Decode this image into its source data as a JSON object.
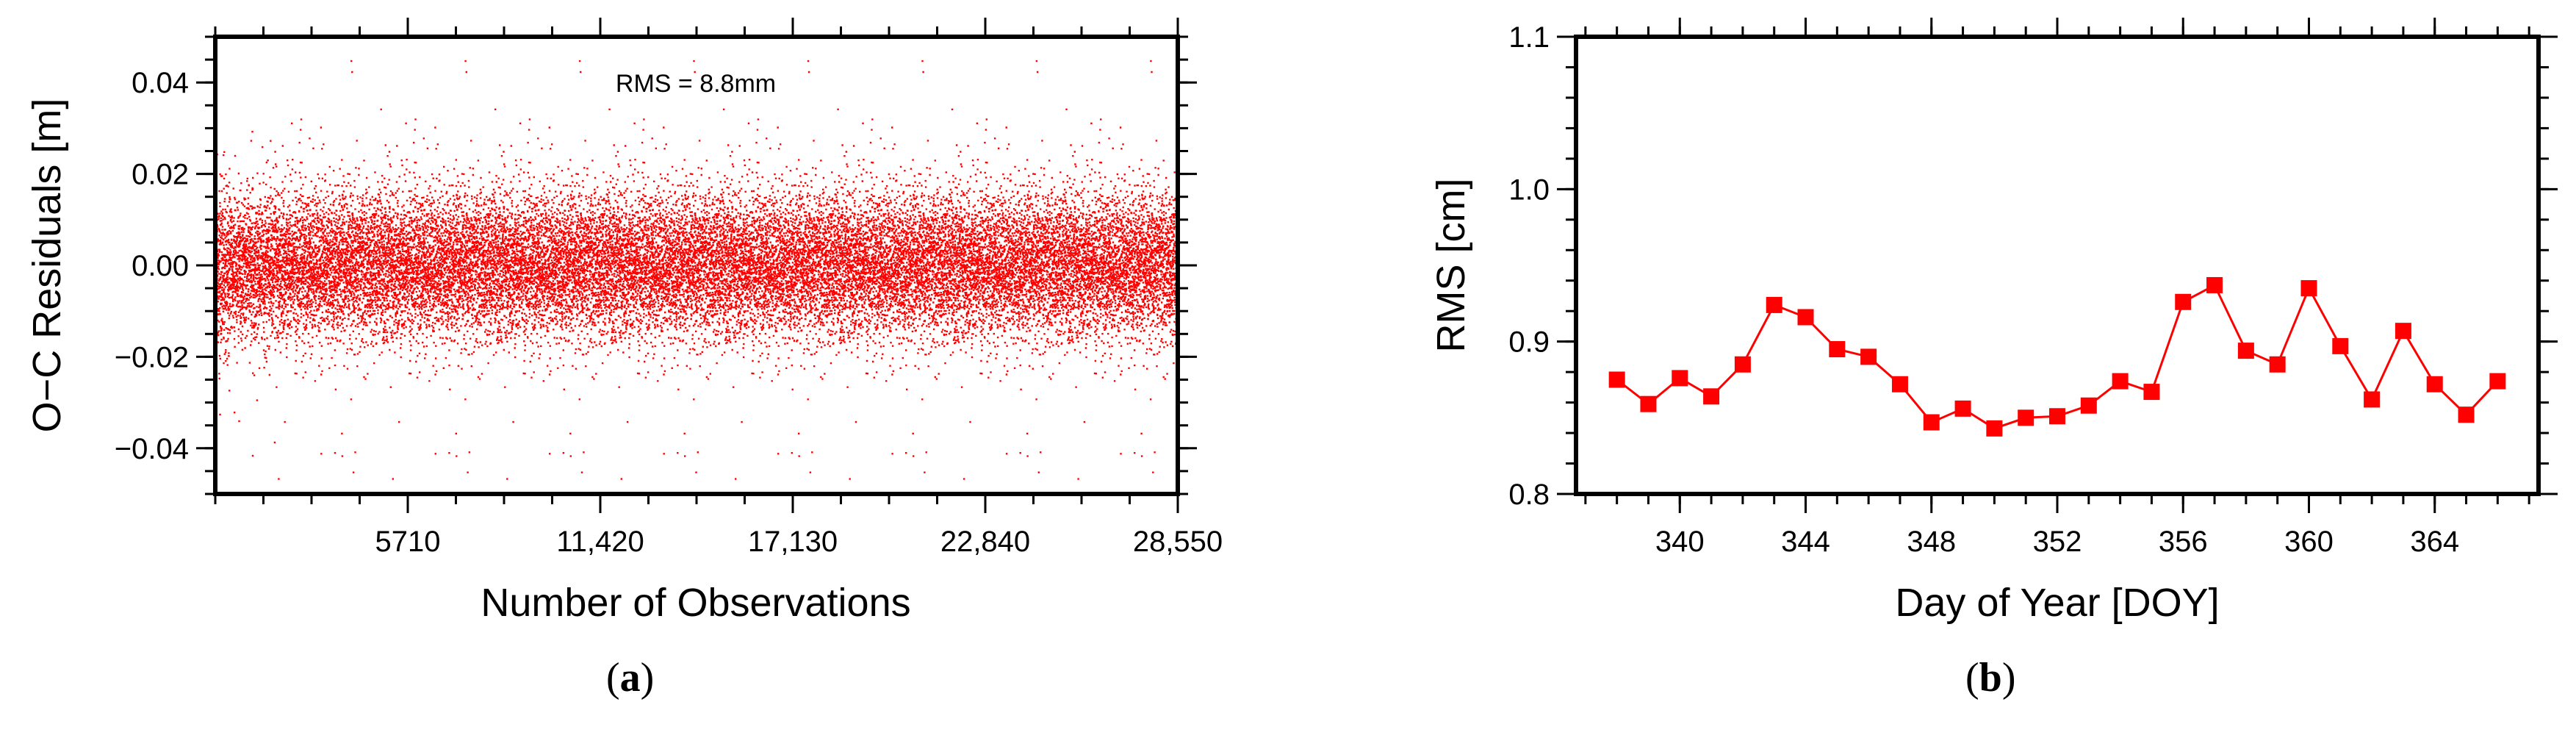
{
  "chart_data": [
    {
      "type": "scatter",
      "xlabel": "Number of Observations",
      "ylabel": "O−C Residuals [m]",
      "annotation": "RMS = 8.8mm",
      "caption_letter": "a",
      "xlim": [
        0,
        28550
      ],
      "ylim": [
        -0.05,
        0.05
      ],
      "x_ticks": [
        5710,
        11420,
        17130,
        22840,
        28550
      ],
      "x_tick_labels": [
        "5710",
        "11,420",
        "17,130",
        "22,840",
        "28,550"
      ],
      "y_ticks": [
        -0.04,
        -0.02,
        0.0,
        0.02,
        0.04
      ],
      "y_tick_labels": [
        "−0.04",
        "−0.02",
        "0.00",
        "0.02",
        "0.04"
      ],
      "n_points": 28550,
      "rms": 0.0088,
      "color": "#ff0000"
    },
    {
      "type": "line",
      "xlabel": "Day of Year [DOY]",
      "ylabel": "RMS [cm]",
      "caption_letter": "b",
      "xlim": [
        336.7,
        367.3
      ],
      "ylim": [
        0.8,
        1.1
      ],
      "x_ticks": [
        340,
        344,
        348,
        352,
        356,
        360,
        364
      ],
      "x_tick_labels": [
        "340",
        "344",
        "348",
        "352",
        "356",
        "360",
        "364"
      ],
      "y_ticks": [
        0.8,
        0.9,
        1.0,
        1.1
      ],
      "y_tick_labels": [
        "0.8",
        "0.9",
        "1.0",
        "1.1"
      ],
      "color": "#ff0000",
      "marker": "square",
      "x": [
        338,
        339,
        340,
        341,
        342,
        343,
        344,
        345,
        346,
        347,
        348,
        349,
        350,
        351,
        352,
        353,
        354,
        355,
        356,
        357,
        358,
        359,
        360,
        361,
        362,
        363,
        364,
        365,
        366
      ],
      "y": [
        0.875,
        0.859,
        0.876,
        0.864,
        0.885,
        0.924,
        0.916,
        0.895,
        0.89,
        0.872,
        0.847,
        0.856,
        0.843,
        0.85,
        0.851,
        0.858,
        0.874,
        0.867,
        0.926,
        0.937,
        0.894,
        0.885,
        0.935,
        0.897,
        0.862,
        0.907,
        0.872,
        0.852,
        0.874
      ]
    }
  ]
}
